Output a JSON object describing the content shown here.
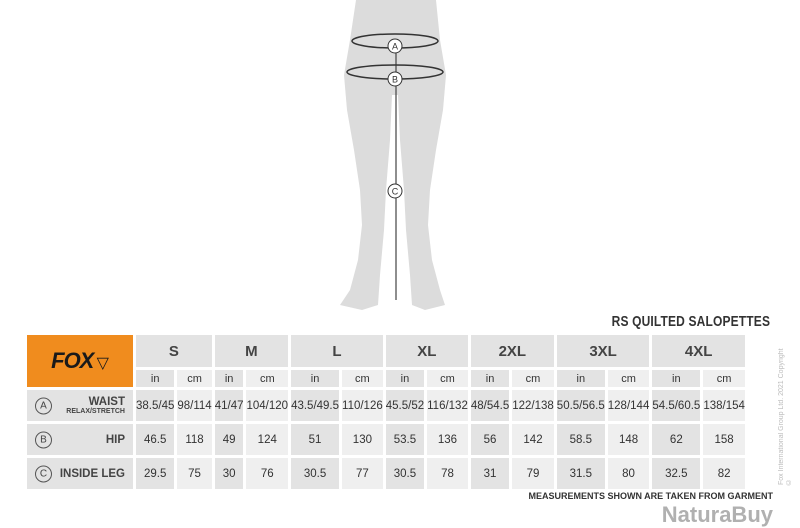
{
  "title": "RS QUILTED SALOPETTES",
  "brand": "FOX",
  "brand_color": "#f08c1e",
  "sizes": [
    "S",
    "M",
    "L",
    "XL",
    "2XL",
    "3XL",
    "4XL"
  ],
  "units": {
    "in": "in",
    "cm": "cm"
  },
  "rows": [
    {
      "marker": "A",
      "label": "WAIST",
      "sublabel": "RELAX/STRETCH",
      "values": [
        "38.5/45",
        "98/114",
        "41/47",
        "104/120",
        "43.5/49.5",
        "110/126",
        "45.5/52",
        "116/132",
        "48/54.5",
        "122/138",
        "50.5/56.5",
        "128/144",
        "54.5/60.5",
        "138/154"
      ]
    },
    {
      "marker": "B",
      "label": "HIP",
      "values": [
        "46.5",
        "118",
        "49",
        "124",
        "51",
        "130",
        "53.5",
        "136",
        "56",
        "142",
        "58.5",
        "148",
        "62",
        "158"
      ]
    },
    {
      "marker": "C",
      "label": "INSIDE LEG",
      "values": [
        "29.5",
        "75",
        "30",
        "76",
        "30.5",
        "77",
        "30.5",
        "78",
        "31",
        "79",
        "31.5",
        "80",
        "32.5",
        "82"
      ]
    }
  ],
  "figure_markers": [
    "A",
    "B",
    "C"
  ],
  "footer": "MEASUREMENTS SHOWN ARE TAKEN FROM GARMENT",
  "copyright": "Fox International Group Ltd. 2021 Copyright ©",
  "watermark": "NaturaBuy"
}
